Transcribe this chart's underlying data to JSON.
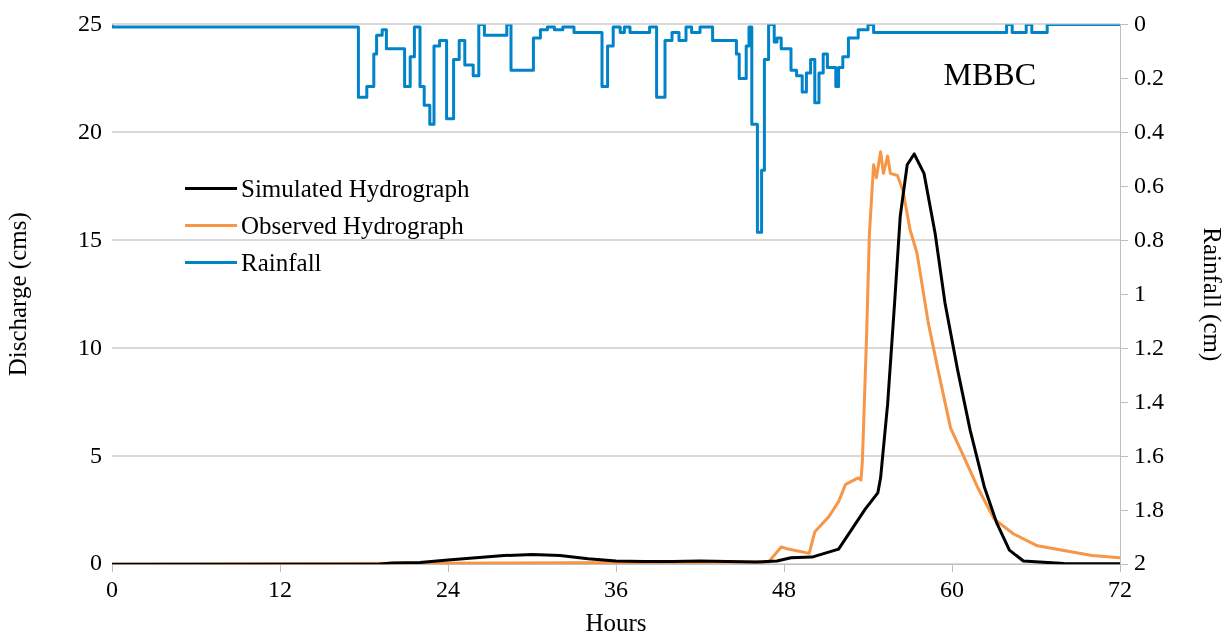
{
  "chart_data": {
    "type": "line",
    "xlabel": "Hours",
    "ylabel": "Discharge (cms)",
    "y2label": "Rainfall (cm)",
    "xlim": [
      0,
      72
    ],
    "xticks": [
      0,
      12,
      24,
      36,
      48,
      60,
      72
    ],
    "ylim": [
      0,
      25
    ],
    "yticks": [
      0,
      5,
      10,
      15,
      20,
      25
    ],
    "y2lim": [
      2,
      0
    ],
    "y2ticks": [
      0,
      0.2,
      0.4,
      0.6,
      0.8,
      1,
      1.2,
      1.4,
      1.6,
      1.8,
      2
    ],
    "grid": "y",
    "legend": "top left",
    "marker": "none",
    "line_style": "solid",
    "annotations": [
      "MBBC"
    ],
    "series": [
      {
        "name": "Simulated Hydrograph",
        "color": "#000000",
        "x": [
          0,
          19,
          20,
          22,
          24,
          26,
          28,
          30,
          32,
          34,
          36,
          38,
          40,
          42,
          44,
          46,
          47.5,
          48.5,
          50,
          51.9,
          53.8,
          54.7,
          54.9,
          55.4,
          55.9,
          56.3,
          56.8,
          57.3,
          58,
          58.8,
          59.5,
          60.4,
          61.3,
          62.3,
          63.2,
          64.1,
          65.1,
          68,
          72
        ],
        "values": [
          0,
          0,
          0.05,
          0.08,
          0.2,
          0.3,
          0.4,
          0.45,
          0.4,
          0.25,
          0.15,
          0.12,
          0.12,
          0.15,
          0.12,
          0.1,
          0.15,
          0.3,
          0.33,
          0.7,
          2.55,
          3.3,
          4,
          7.4,
          12.1,
          16.1,
          18.5,
          19,
          18.1,
          15.3,
          12.1,
          9,
          6.2,
          3.6,
          1.9,
          0.65,
          0.15,
          0.03,
          0.02
        ]
      },
      {
        "name": "Observed Hydrograph",
        "color": "#f79646",
        "x": [
          0,
          46.9,
          47.8,
          48.3,
          49.8,
          50.2,
          51.2,
          51.9,
          52.4,
          53.3,
          53.5,
          53.6,
          53.9,
          54.1,
          54.4,
          54.6,
          54.9,
          55.1,
          55.4,
          55.6,
          56.1,
          56.5,
          57,
          57.5,
          58.3,
          59,
          59.9,
          60.9,
          61.8,
          63,
          64.4,
          66.1,
          70,
          72
        ],
        "values": [
          0,
          0.1,
          0.8,
          0.7,
          0.5,
          1.5,
          2.2,
          2.9,
          3.7,
          4,
          3.9,
          4.8,
          10.6,
          15.3,
          18.5,
          17.9,
          19.1,
          18.1,
          18.9,
          18.1,
          18,
          17.3,
          15.5,
          14.4,
          11.2,
          9,
          6.3,
          4.9,
          3.6,
          2.1,
          1.4,
          0.85,
          0.4,
          0.3
        ]
      },
      {
        "name": "Rainfall",
        "color": "#0083c9",
        "type": "step",
        "axis": "y2",
        "x": [
          0,
          17.6,
          18.2,
          18.7,
          18.9,
          19.3,
          19.6,
          20.9,
          21.3,
          21.6,
          22,
          22.3,
          22.7,
          23,
          23.4,
          23.9,
          24.4,
          24.8,
          25.2,
          25.8,
          26.2,
          26.6,
          28.2,
          28.5,
          30.1,
          30.6,
          31.1,
          31.6,
          32.2,
          33,
          35,
          35.4,
          35.8,
          36.3,
          36.6,
          37,
          38.4,
          38.9,
          39.5,
          40,
          40.5,
          41,
          41.4,
          42,
          42.9,
          44.6,
          44.8,
          45.3,
          45.5,
          45.7,
          46.1,
          46.4,
          46.6,
          46.9,
          47.3,
          47.5,
          47.8,
          48.5,
          48.9,
          49.3,
          49.6,
          49.9,
          50.2,
          50.5,
          50.8,
          51.1,
          51.7,
          51.9,
          52.2,
          52.6,
          53.3,
          54,
          54.4,
          63.9,
          64.3,
          65.3,
          65.7,
          66.8,
          67.1,
          72
        ],
        "values": [
          0,
          0.01,
          0.27,
          0.23,
          0.11,
          0.04,
          0.02,
          0.09,
          0.23,
          0.12,
          0.01,
          0.23,
          0.3,
          0.37,
          0.08,
          0.06,
          0.35,
          0.13,
          0.06,
          0.15,
          0.19,
          0,
          0.04,
          0,
          0.17,
          0.05,
          0.02,
          0.01,
          0.02,
          0.01,
          0.03,
          0.23,
          0.08,
          0.01,
          0.03,
          0.01,
          0.03,
          0.01,
          0.27,
          0.06,
          0.03,
          0.06,
          0.01,
          0.03,
          0.01,
          0.06,
          0.11,
          0.2,
          0.08,
          0.01,
          0.37,
          0.77,
          0.54,
          0.13,
          0,
          0.065,
          0.05,
          0.09,
          0.17,
          0.19,
          0.25,
          0.18,
          0.13,
          0.29,
          0.18,
          0.11,
          0.16,
          0.23,
          0.16,
          0.12,
          0.05,
          0.02,
          0,
          0.03,
          0,
          0.03,
          0,
          0.03,
          0,
          0
        ]
      }
    ]
  }
}
